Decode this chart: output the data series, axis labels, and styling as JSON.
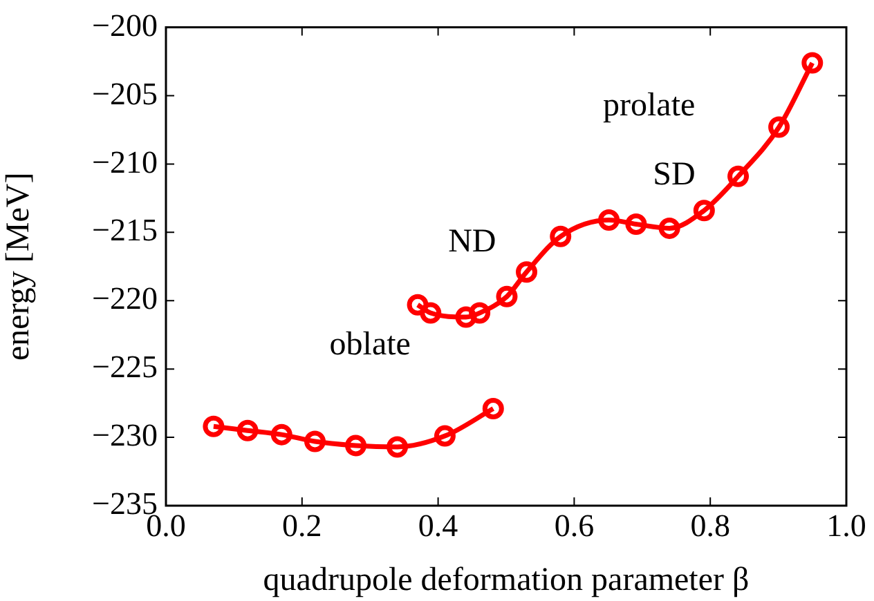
{
  "chart_data": {
    "type": "line",
    "xlabel": "quadrupole deformation parameter β",
    "ylabel": "energy [MeV]",
    "xlim": [
      0,
      1
    ],
    "xticks": [
      {
        "value": 0,
        "label": "0.0"
      },
      0.2,
      0.4,
      0.6,
      0.8,
      {
        "value": 1,
        "label": "1.0"
      }
    ],
    "ylim": [
      -235,
      -200
    ],
    "yticks": [
      -235,
      -230,
      -225,
      -220,
      -215,
      -210,
      -205,
      -200
    ],
    "grid": false,
    "legend": false,
    "marker": "circle",
    "line_style": "solid",
    "series": [
      {
        "color": "#ff0000",
        "x": [
          0.07,
          0.12,
          0.17,
          0.219,
          0.279,
          0.34,
          0.41,
          0.481
        ],
        "values": [
          -229.2,
          -229.5,
          -229.8,
          -230.3,
          -230.6,
          -230.7,
          -229.9,
          -227.9
        ]
      },
      {
        "color": "#ff0000",
        "x": [
          0.37,
          0.389,
          0.441,
          0.461,
          0.501,
          0.53,
          0.58,
          0.651,
          0.691,
          0.74,
          0.791,
          0.841,
          0.901,
          0.95
        ],
        "values": [
          -220.3,
          -220.9,
          -221.2,
          -220.9,
          -219.7,
          -217.9,
          -215.3,
          -214.1,
          -214.4,
          -214.7,
          -213.4,
          -210.9,
          -207.3,
          -202.6
        ]
      }
    ],
    "annotations": [
      "prolate",
      "SD",
      "ND",
      "oblate"
    ]
  }
}
